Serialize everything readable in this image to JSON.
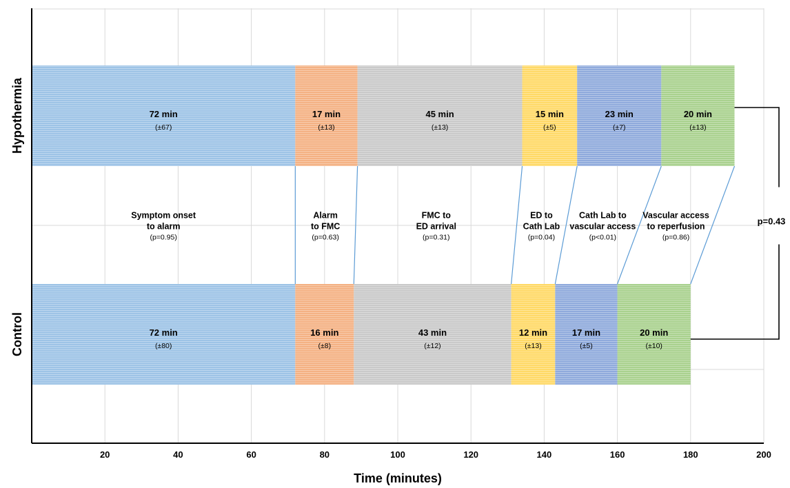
{
  "chart_data": {
    "type": "bar",
    "orientation": "horizontal",
    "stacked": true,
    "xlabel": "Time (minutes)",
    "xlim": [
      0,
      200
    ],
    "xticks": [
      20,
      40,
      60,
      80,
      100,
      120,
      140,
      160,
      180,
      200
    ],
    "grid": true,
    "rows": [
      {
        "name": "Hypothermia",
        "segments": [
          {
            "value": 72,
            "label": "72 min",
            "sd": "(±67)"
          },
          {
            "value": 17,
            "label": "17 min",
            "sd": "(±13)"
          },
          {
            "value": 45,
            "label": "45 min",
            "sd": "(±13)"
          },
          {
            "value": 15,
            "label": "15 min",
            "sd": "(±5)"
          },
          {
            "value": 23,
            "label": "23 min",
            "sd": "(±7)"
          },
          {
            "value": 20,
            "label": "20 min",
            "sd": "(±13)"
          }
        ]
      },
      {
        "name": "Control",
        "segments": [
          {
            "value": 72,
            "label": "72 min",
            "sd": "(±80)"
          },
          {
            "value": 16,
            "label": "16 min",
            "sd": "(±8)"
          },
          {
            "value": 43,
            "label": "43 min",
            "sd": "(±12)"
          },
          {
            "value": 12,
            "label": "12 min",
            "sd": "(±13)"
          },
          {
            "value": 17,
            "label": "17 min",
            "sd": "(±5)"
          },
          {
            "value": 20,
            "label": "20 min",
            "sd": "(±10)"
          }
        ]
      }
    ],
    "phases": [
      {
        "lines": [
          "Symptom onset",
          "to alarm"
        ],
        "p": "(p=0.95)"
      },
      {
        "lines": [
          "Alarm",
          "to FMC"
        ],
        "p": "(p=0.63)"
      },
      {
        "lines": [
          "FMC to",
          "ED arrival"
        ],
        "p": "(p=0.31)"
      },
      {
        "lines": [
          "ED to",
          "Cath Lab"
        ],
        "p": "(p=0.04)"
      },
      {
        "lines": [
          "Cath Lab to",
          "vascular access"
        ],
        "p": "(p<0.01)"
      },
      {
        "lines": [
          "Vascular access",
          "to reperfusion"
        ],
        "p": "(p=0.86)"
      }
    ],
    "total_p": "p=0.43",
    "colors": [
      "#9dc3e6",
      "#f4b183",
      "#c9c9c9",
      "#ffd966",
      "#8faadc",
      "#a9d18e"
    ]
  }
}
